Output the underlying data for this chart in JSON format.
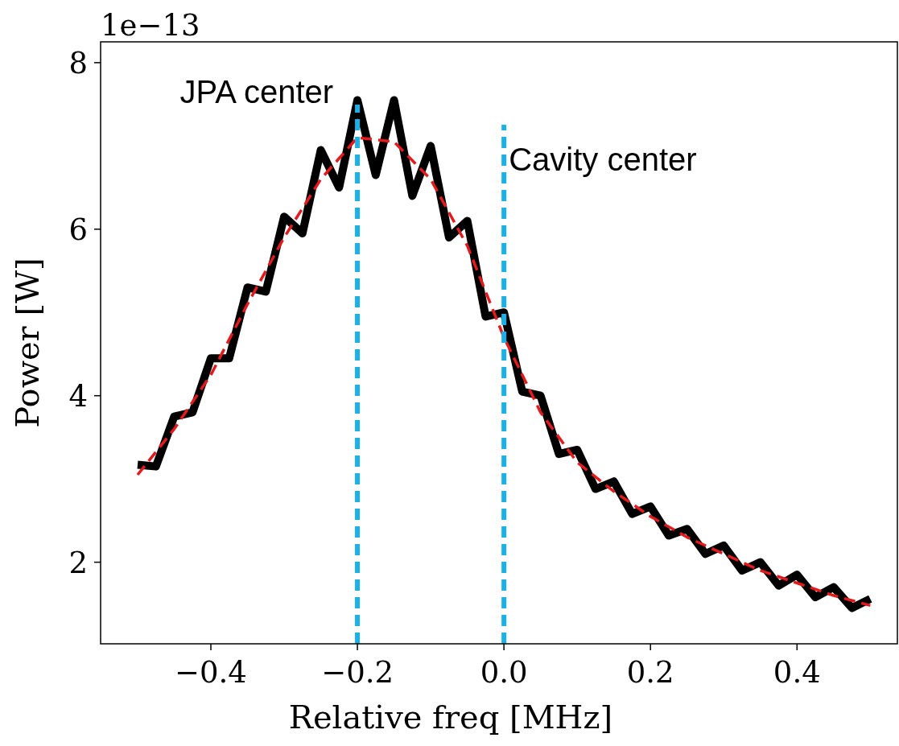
{
  "chart_data": {
    "type": "line",
    "xlabel": "Relative freq [MHz]",
    "ylabel": "Power [W]",
    "annotations": [
      "1e−13"
    ],
    "xlim": [
      -0.5505,
      0.537
    ],
    "ylim": [
      1.02,
      8.25
    ],
    "xticks": [
      {
        "value": -0.4,
        "label": "−0.4"
      },
      {
        "value": -0.2,
        "label": "−0.2"
      },
      {
        "value": 0,
        "label": "0.0"
      },
      {
        "value": 0.2,
        "label": "0.2"
      },
      {
        "value": 0.4,
        "label": "0.4"
      }
    ],
    "yticks": [
      2,
      4,
      6,
      8
    ],
    "grid": false,
    "series": [
      {
        "color": "#000000",
        "line_style": "solid",
        "x": [
          -0.5,
          -0.475,
          -0.45,
          -0.425,
          -0.4,
          -0.375,
          -0.35,
          -0.325,
          -0.3,
          -0.275,
          -0.25,
          -0.225,
          -0.2,
          -0.175,
          -0.15,
          -0.125,
          -0.1,
          -0.075,
          -0.05,
          -0.025,
          0,
          0.025,
          0.05,
          0.075,
          0.1,
          0.125,
          0.15,
          0.175,
          0.2,
          0.225,
          0.25,
          0.275,
          0.3,
          0.325,
          0.35,
          0.375,
          0.4,
          0.425,
          0.45,
          0.475,
          0.5
        ],
        "values": [
          3.17,
          3.15,
          3.75,
          3.8,
          4.45,
          4.45,
          5.3,
          5.25,
          6.15,
          5.95,
          6.95,
          6.5,
          7.55,
          6.65,
          7.55,
          6.4,
          7.0,
          5.9,
          6.1,
          4.95,
          5.0,
          4.05,
          4.0,
          3.3,
          3.35,
          2.88,
          2.97,
          2.58,
          2.67,
          2.32,
          2.4,
          2.1,
          2.2,
          1.9,
          2.0,
          1.72,
          1.85,
          1.58,
          1.7,
          1.45,
          1.56
        ]
      },
      {
        "color": "#e41a1c",
        "line_style": "dashed",
        "x": [
          -0.5,
          -0.45,
          -0.4,
          -0.35,
          -0.3,
          -0.25,
          -0.2,
          -0.15,
          -0.1,
          -0.05,
          0,
          0.05,
          0.1,
          0.15,
          0.2,
          0.25,
          0.3,
          0.35,
          0.4,
          0.45,
          0.5
        ],
        "values": [
          3.05,
          3.6,
          4.25,
          5.1,
          5.9,
          6.6,
          7.1,
          7.05,
          6.6,
          5.8,
          4.7,
          3.8,
          3.2,
          2.85,
          2.55,
          2.3,
          2.1,
          1.9,
          1.75,
          1.6,
          1.48
        ]
      }
    ],
    "ref_lines": [
      {
        "axis": "x",
        "value": -0.2,
        "label": "JPA center",
        "color": "#1ab0e8",
        "line_style": "dashed"
      },
      {
        "axis": "x",
        "value": 0,
        "label": "Cavity center",
        "color": "#1ab0e8",
        "line_style": "dashed"
      }
    ]
  }
}
